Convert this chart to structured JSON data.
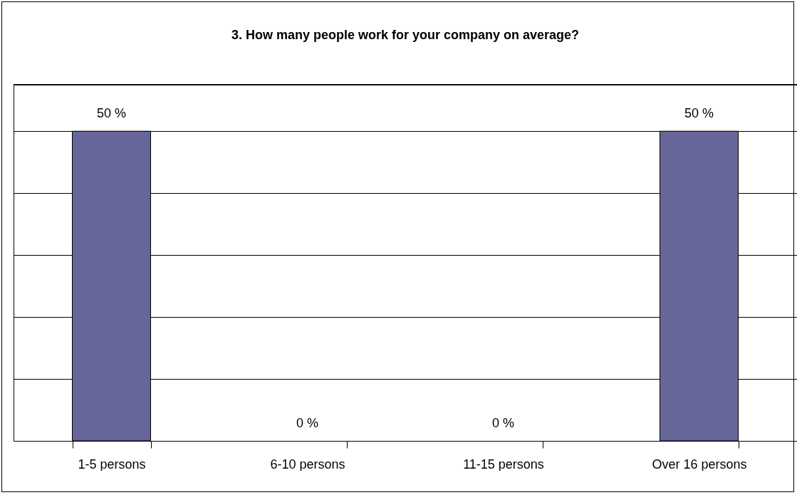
{
  "chart_data": {
    "type": "bar",
    "title": "3. How many people work for your company on average?",
    "categories": [
      "1-5 persons",
      "6-10 persons",
      "11-15 persons",
      "Over 16 persons"
    ],
    "values": [
      50,
      0,
      0,
      50
    ],
    "value_labels": [
      "50 %",
      "0 %",
      "0 %",
      "50 %"
    ],
    "color": "#666699",
    "ylim": [
      0,
      57.5
    ],
    "yticks": [
      {
        "value": 0,
        "label": null
      },
      {
        "value": 10,
        "label": null
      },
      {
        "value": 20,
        "label": null
      },
      {
        "value": 30,
        "label": null
      },
      {
        "value": 40,
        "label": null
      },
      {
        "value": 50,
        "label": null
      }
    ],
    "grid": "y",
    "tick_labels": "x"
  }
}
